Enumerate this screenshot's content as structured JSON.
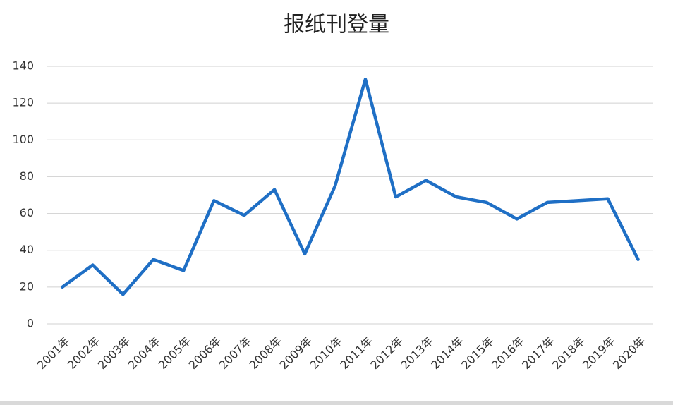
{
  "chart_data": {
    "type": "line",
    "title": "报纸刊登量",
    "categories": [
      "2001年",
      "2002年",
      "2003年",
      "2004年",
      "2005年",
      "2006年",
      "2007年",
      "2008年",
      "2009年",
      "2010年",
      "2011年",
      "2012年",
      "2013年",
      "2014年",
      "2015年",
      "2016年",
      "2017年",
      "2018年",
      "2019年",
      "2020年"
    ],
    "values": [
      20,
      32,
      16,
      35,
      29,
      67,
      59,
      73,
      38,
      75,
      133,
      69,
      78,
      69,
      66,
      57,
      66,
      67,
      68,
      35
    ],
    "color": "#1f6fc5",
    "ylim": [
      0,
      140
    ],
    "yticks": [
      0,
      20,
      40,
      60,
      80,
      100,
      120,
      140
    ],
    "grid": true
  }
}
